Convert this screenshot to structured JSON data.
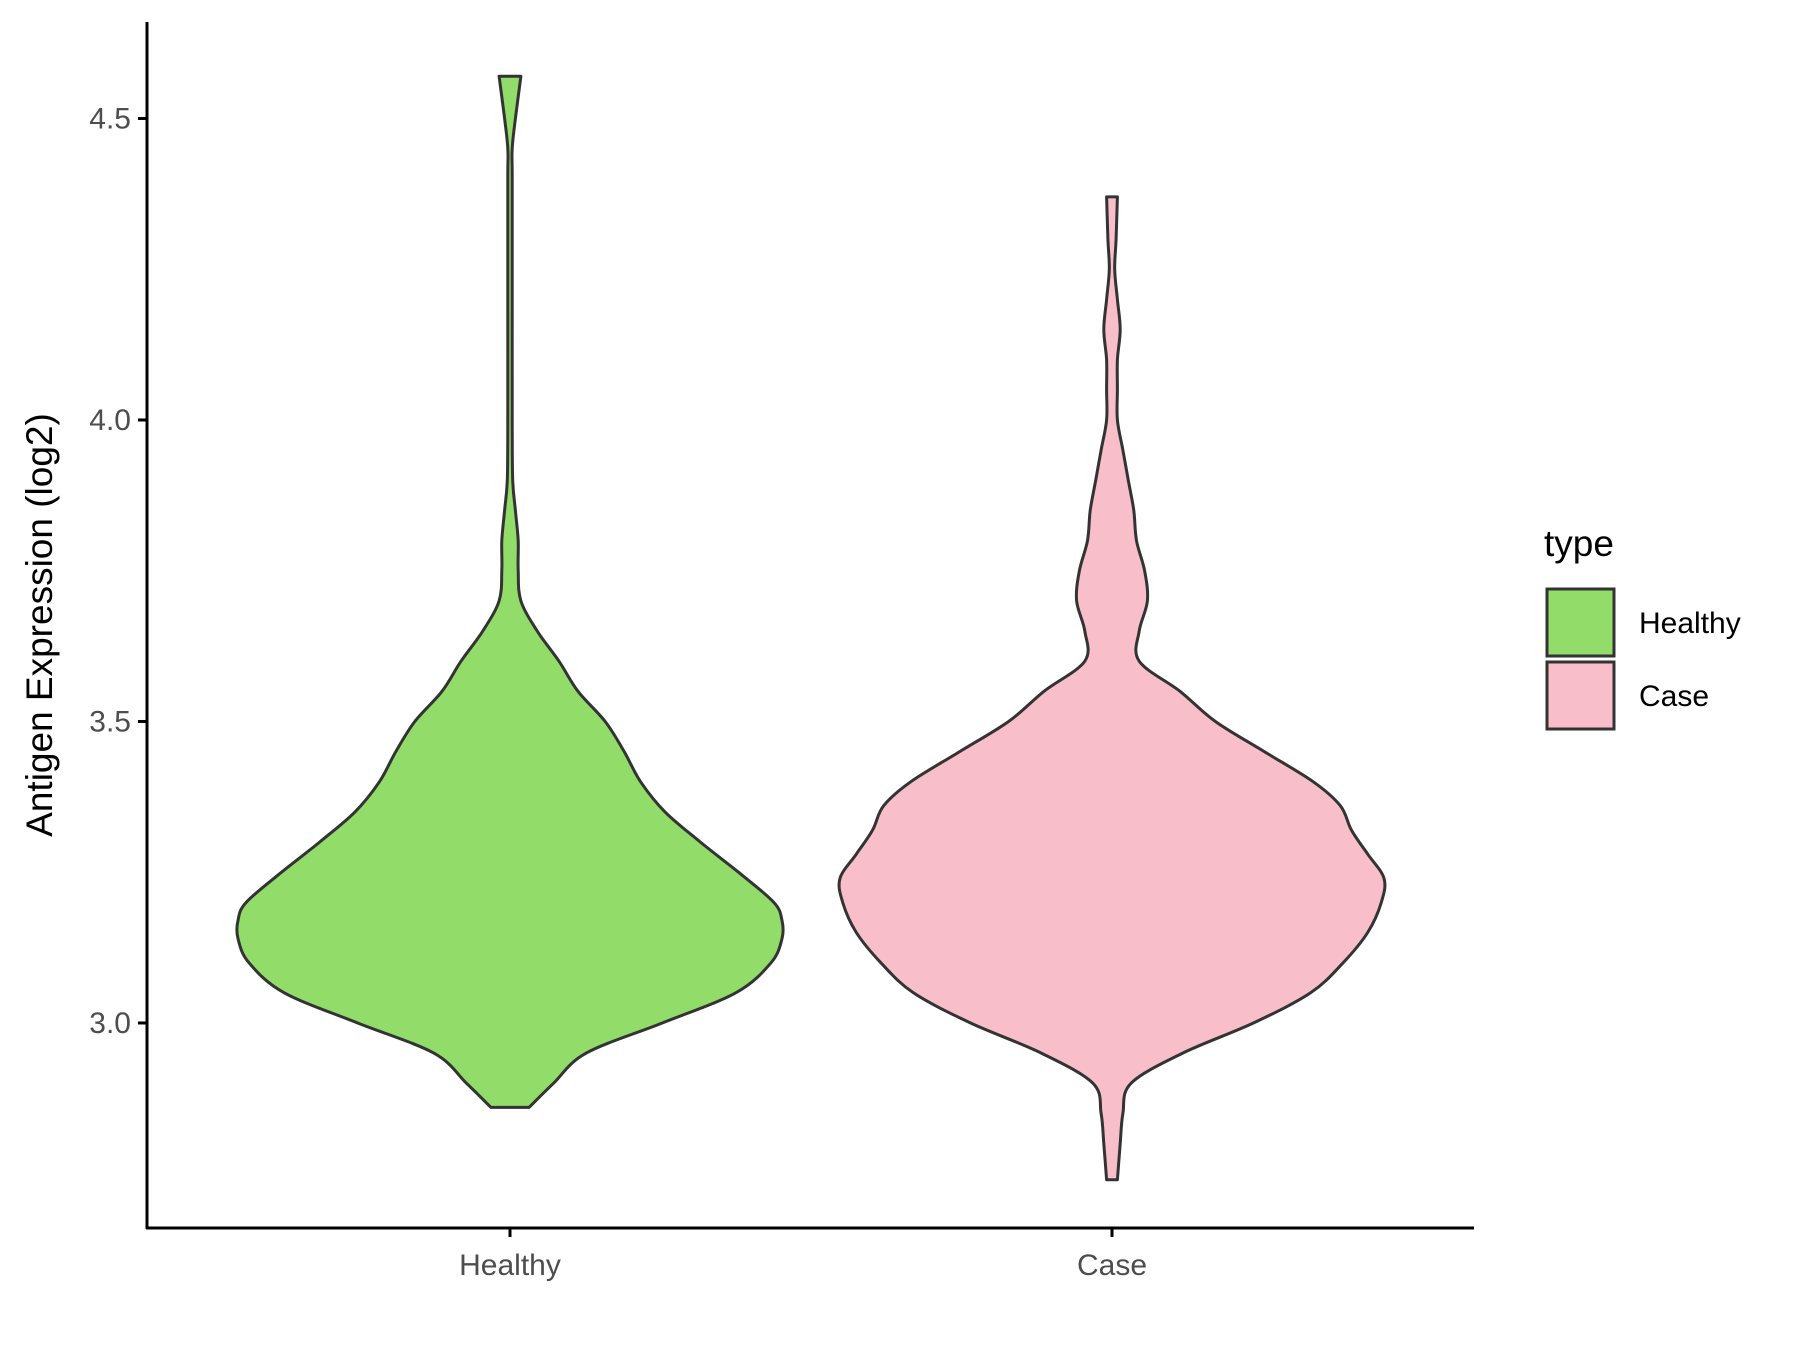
{
  "chart_data": {
    "type": "violin",
    "ylabel": "Antigen Expression (log2)",
    "xlabel": "",
    "categories": [
      "Healthy",
      "Case"
    ],
    "y_ticks": [
      "3.0",
      "3.5",
      "4.0",
      "4.5"
    ],
    "ylim": [
      2.66,
      4.66
    ],
    "grid": false,
    "legend": {
      "title": "type",
      "placement": "right",
      "entries": [
        {
          "label": "Healthy",
          "color": "#92dc6a"
        },
        {
          "label": "Case",
          "color": "#f8bfca"
        }
      ]
    },
    "outline_color": "#333333",
    "series": [
      {
        "name": "Healthy",
        "color": "#92dc6a",
        "min": 2.86,
        "max": 4.57,
        "density_profile": [
          [
            2.86,
            0.07
          ],
          [
            2.9,
            0.16
          ],
          [
            2.95,
            0.28
          ],
          [
            3.0,
            0.56
          ],
          [
            3.05,
            0.83
          ],
          [
            3.1,
            0.96
          ],
          [
            3.14,
            1.0
          ],
          [
            3.17,
            1.0
          ],
          [
            3.2,
            0.97
          ],
          [
            3.25,
            0.84
          ],
          [
            3.3,
            0.7
          ],
          [
            3.35,
            0.57
          ],
          [
            3.4,
            0.48
          ],
          [
            3.45,
            0.42
          ],
          [
            3.5,
            0.35
          ],
          [
            3.55,
            0.25
          ],
          [
            3.6,
            0.18
          ],
          [
            3.65,
            0.1
          ],
          [
            3.7,
            0.04
          ],
          [
            3.75,
            0.03
          ],
          [
            3.8,
            0.03
          ],
          [
            3.85,
            0.02
          ],
          [
            3.9,
            0.01
          ],
          [
            4.0,
            0.008
          ],
          [
            4.2,
            0.008
          ],
          [
            4.4,
            0.008
          ],
          [
            4.45,
            0.008
          ],
          [
            4.5,
            0.02
          ],
          [
            4.57,
            0.04
          ]
        ]
      },
      {
        "name": "Case",
        "color": "#f8bfca",
        "min": 2.74,
        "max": 4.37,
        "density_profile": [
          [
            2.74,
            0.02
          ],
          [
            2.8,
            0.03
          ],
          [
            2.85,
            0.04
          ],
          [
            2.9,
            0.07
          ],
          [
            2.95,
            0.26
          ],
          [
            3.0,
            0.52
          ],
          [
            3.05,
            0.73
          ],
          [
            3.1,
            0.85
          ],
          [
            3.15,
            0.94
          ],
          [
            3.2,
            0.99
          ],
          [
            3.24,
            1.0
          ],
          [
            3.28,
            0.94
          ],
          [
            3.32,
            0.88
          ],
          [
            3.36,
            0.84
          ],
          [
            3.4,
            0.74
          ],
          [
            3.45,
            0.56
          ],
          [
            3.5,
            0.38
          ],
          [
            3.55,
            0.25
          ],
          [
            3.6,
            0.1
          ],
          [
            3.65,
            0.1
          ],
          [
            3.7,
            0.13
          ],
          [
            3.75,
            0.12
          ],
          [
            3.8,
            0.09
          ],
          [
            3.85,
            0.08
          ],
          [
            3.9,
            0.06
          ],
          [
            3.95,
            0.04
          ],
          [
            4.0,
            0.02
          ],
          [
            4.05,
            0.02
          ],
          [
            4.1,
            0.02
          ],
          [
            4.15,
            0.03
          ],
          [
            4.2,
            0.02
          ],
          [
            4.25,
            0.01
          ],
          [
            4.3,
            0.015
          ],
          [
            4.37,
            0.02
          ]
        ]
      }
    ]
  }
}
